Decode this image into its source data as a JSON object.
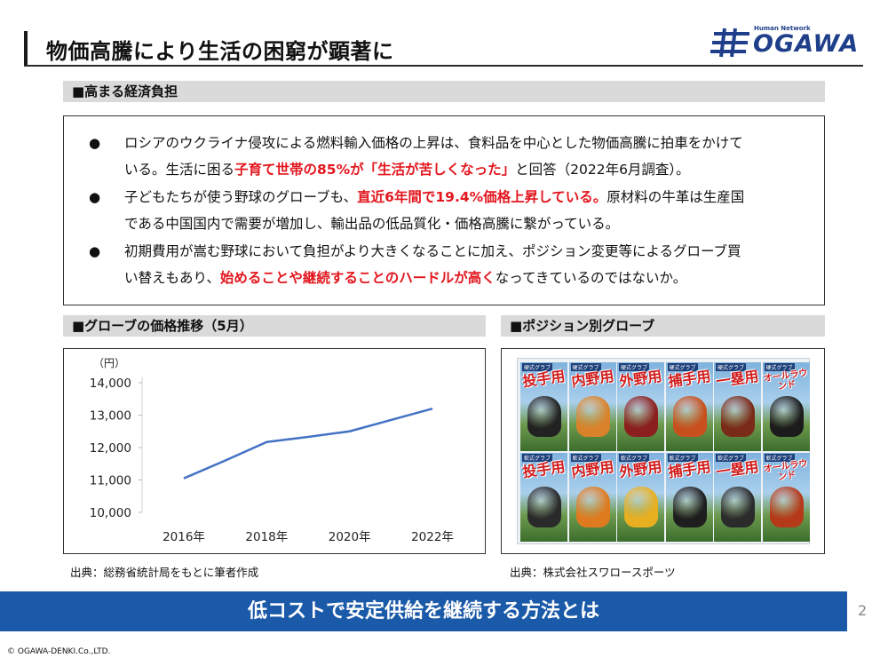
{
  "header": {
    "title": "物価高騰により生活の困窮が顕著に",
    "logo_small": "Human Network",
    "logo_text": "OGAWA"
  },
  "section_burden": {
    "label": "■高まる経済負担"
  },
  "bullets": [
    {
      "symbol": "●",
      "line1": "ロシアのウクライナ侵攻による燃料輸入価格の上昇は、食料品を中心とした物価高騰に拍車をかけて",
      "line2_pre": "いる。生活に困る",
      "line2_red": "子育て世帯の85%が「生活が苦しくなった」",
      "line2_post": "と回答（2022年6月調査）。"
    },
    {
      "symbol": "●",
      "line1_pre": "子どもたちが使う野球のグローブも、",
      "line1_red": "直近6年間で19.4%価格上昇している。",
      "line1_post": "原材料の牛革は生産国",
      "line2": "である中国国内で需要が増加し、輸出品の低品質化・価格高騰に繋がっている。"
    },
    {
      "symbol": "●",
      "line1": "初期費用が嵩む野球において負担がより大きくなることに加え、ポジション変更等によるグローブ買",
      "line2_pre": "い替えもあり、",
      "line2_red": "始めることや継続することのハードルが高く",
      "line2_post": "なってきているのではないか。"
    }
  ],
  "section_chart": {
    "label": "■グローブの価格推移（5月）"
  },
  "section_photo": {
    "label": "■ポジション別グローブ"
  },
  "chart_data": {
    "type": "line",
    "title": "",
    "ylabel": "（円）",
    "xlabel": "",
    "categories": [
      "2016年",
      "2018年",
      "2020年",
      "2022年"
    ],
    "x": [
      2016,
      2017,
      2018,
      2019,
      2020,
      2021,
      2022
    ],
    "series": [
      {
        "values": [
          11050,
          11600,
          12170,
          12330,
          12500,
          12850,
          13200
        ]
      }
    ],
    "yticks": [
      "10,000",
      "11,000",
      "12,000",
      "13,000",
      "14,000"
    ],
    "ylim": [
      10000,
      14000
    ],
    "grid": false,
    "line_color": "#4472c4"
  },
  "gloves": {
    "top_label": "硬式グラブ",
    "bottom_label": "軟式グラブ",
    "positions": [
      "投手用",
      "内野用",
      "外野用",
      "捕手用",
      "一塁用",
      "オールラウンド"
    ],
    "top_colors": [
      "#222222",
      "#d9822b",
      "#8b1e1e",
      "#c8501e",
      "#7a2a18",
      "#1c1c1c"
    ],
    "bottom_colors": [
      "#2a2a2a",
      "#e07a1f",
      "#e8b020",
      "#1e1e1e",
      "#2b2b2b",
      "#b53a1a"
    ]
  },
  "sources": {
    "chart": "出典：総務省統計局をもとに筆者作成",
    "photo": "出典：株式会社スワロースポーツ"
  },
  "banner": {
    "text": "低コストで安定供給を継続する方法とは"
  },
  "footer": {
    "page_number": "2",
    "copyright": "© OGAWA-DENKI.Co.,LTD."
  }
}
